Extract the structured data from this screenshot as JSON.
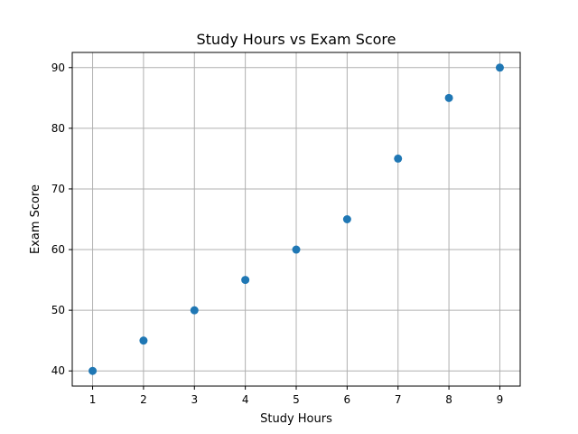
{
  "chart_data": {
    "type": "scatter",
    "title": "Study Hours vs Exam Score",
    "xlabel": "Study Hours",
    "ylabel": "Exam Score",
    "x": [
      1,
      2,
      3,
      4,
      5,
      6,
      7,
      8,
      9
    ],
    "y": [
      40,
      45,
      50,
      55,
      60,
      65,
      75,
      85,
      90
    ],
    "xlim": [
      0.6,
      9.4
    ],
    "ylim": [
      37.5,
      92.5
    ],
    "xticks": [
      1,
      2,
      3,
      4,
      5,
      6,
      7,
      8,
      9
    ],
    "yticks": [
      40,
      50,
      60,
      70,
      80,
      90
    ],
    "grid": true,
    "marker_color": "#1f77b4"
  }
}
